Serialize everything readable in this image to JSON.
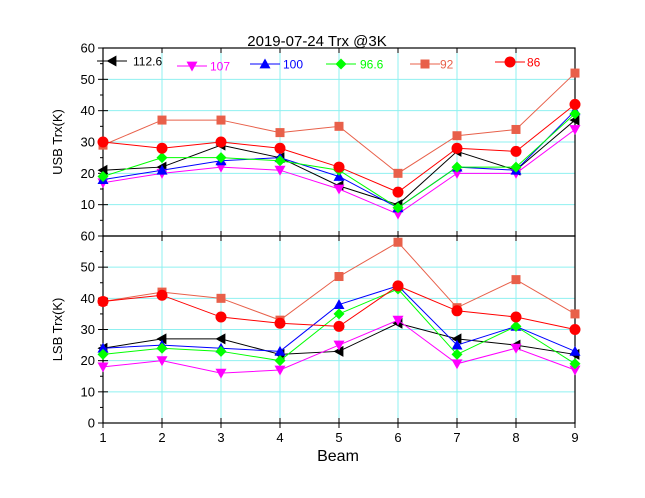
{
  "chart_data": {
    "type": "line",
    "title": "2019-07-24 Trx @3K",
    "xlabel": "Beam",
    "x": [
      1,
      2,
      3,
      4,
      5,
      6,
      7,
      8,
      9
    ],
    "x_ticks": [
      "1",
      "2",
      "3",
      "4",
      "5",
      "6",
      "7",
      "8",
      "9"
    ],
    "grid": true,
    "legend_position": "top",
    "legend": [
      {
        "name": "112.6",
        "color": "#000000",
        "marker": "left-triangle"
      },
      {
        "name": "107",
        "color": "#ff00ff",
        "marker": "down-triangle"
      },
      {
        "name": "100",
        "color": "#0000ff",
        "marker": "up-triangle"
      },
      {
        "name": "96.6",
        "color": "#00ff00",
        "marker": "diamond"
      },
      {
        "name": "92",
        "color": "#e8604a",
        "marker": "square"
      },
      {
        "name": "86",
        "color": "#ff0000",
        "marker": "circle"
      }
    ],
    "panels": [
      {
        "ylabel": "USB Trx(K)",
        "ylim": [
          0,
          60
        ],
        "y_ticks": [
          "60",
          "50",
          "40",
          "30",
          "20",
          "10"
        ],
        "series": [
          {
            "name": "112.6",
            "values": [
              21,
              22,
              29,
              25,
              16,
              10,
              27,
              21,
              37
            ]
          },
          {
            "name": "107",
            "values": [
              17,
              20,
              22,
              21,
              15,
              7,
              20,
              20,
              34
            ]
          },
          {
            "name": "100",
            "values": [
              18,
              21,
              24,
              25,
              19,
              9,
              22,
              21,
              40
            ]
          },
          {
            "name": "96.6",
            "values": [
              19,
              25,
              25,
              24,
              21,
              9,
              22,
              22,
              39
            ]
          },
          {
            "name": "92",
            "values": [
              29,
              37,
              37,
              33,
              35,
              20,
              32,
              34,
              52
            ]
          },
          {
            "name": "86",
            "values": [
              30,
              28,
              30,
              28,
              22,
              14,
              28,
              27,
              42
            ]
          }
        ]
      },
      {
        "ylabel": "LSB Trx(K)",
        "ylim": [
          0,
          60
        ],
        "y_ticks": [
          "60",
          "50",
          "40",
          "30",
          "20",
          "10",
          "0"
        ],
        "series": [
          {
            "name": "112.6",
            "values": [
              24,
              27,
              27,
              22,
              23,
              32,
              27,
              25,
              22
            ]
          },
          {
            "name": "107",
            "values": [
              18,
              20,
              16,
              17,
              25,
              33,
              19,
              24,
              17
            ]
          },
          {
            "name": "100",
            "values": [
              24,
              25,
              24,
              23,
              38,
              44,
              25,
              31,
              23
            ]
          },
          {
            "name": "96.6",
            "values": [
              22,
              24,
              23,
              20,
              35,
              43,
              22,
              31,
              19
            ]
          },
          {
            "name": "92",
            "values": [
              39,
              42,
              40,
              33,
              47,
              58,
              37,
              46,
              35
            ]
          },
          {
            "name": "86",
            "values": [
              39,
              41,
              34,
              32,
              31,
              44,
              36,
              34,
              30
            ]
          }
        ]
      }
    ]
  }
}
